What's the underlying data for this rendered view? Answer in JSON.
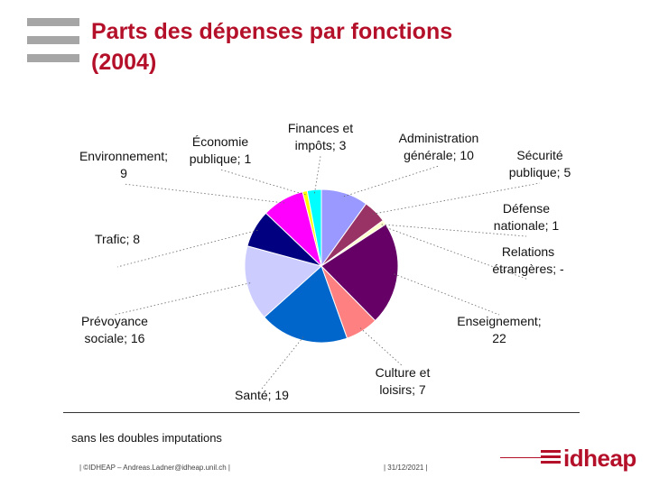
{
  "slide": {
    "title_line1": "Parts des dépenses par fonctions",
    "title_line2": "(2004)",
    "note": "sans les doubles imputations",
    "footer_author": "| ©IDHEAP – Andreas.Ladner@idheap.unil.ch |",
    "footer_date": "| 31/12/2021 |",
    "logo_text": "idheap"
  },
  "colors": {
    "title": "#b5102a",
    "deco_bars": "#a6a6a6"
  },
  "chart_data": {
    "type": "pie",
    "title": "",
    "slices": [
      {
        "label": "Administration générale; 10",
        "value": 10,
        "color": "#9999ff"
      },
      {
        "label": "Sécurité publique; 5",
        "value": 5,
        "color": "#993366"
      },
      {
        "label": "Défense nationale; 1",
        "value": 1,
        "color": "#ffffcc"
      },
      {
        "label": "Relations étrangères; -",
        "value": 0,
        "color": "#ccffff"
      },
      {
        "label": "Enseignement; 22",
        "value": 22,
        "color": "#660066"
      },
      {
        "label": "Culture et loisirs; 7",
        "value": 7,
        "color": "#ff8080"
      },
      {
        "label": "Santé; 19",
        "value": 19,
        "color": "#0066cc"
      },
      {
        "label": "Prévoyance sociale; 16",
        "value": 16,
        "color": "#ccccff"
      },
      {
        "label": "Trafic; 8",
        "value": 8,
        "color": "#000080"
      },
      {
        "label": "Environnement; 9",
        "value": 9,
        "color": "#ff00ff"
      },
      {
        "label": "Économie publique; 1",
        "value": 1,
        "color": "#ffff00"
      },
      {
        "label": "Finances et impôts; 3",
        "value": 3,
        "color": "#00ffff"
      }
    ]
  }
}
